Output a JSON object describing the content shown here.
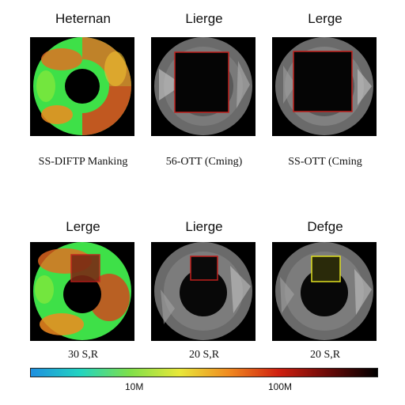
{
  "panels": [
    {
      "title": "Heternan",
      "caption": "SS-DIFTP Manking"
    },
    {
      "title": "Lierge",
      "caption": "56-OTT (Cming)"
    },
    {
      "title": "Lerge",
      "caption": "SS-OTT (Cming"
    },
    {
      "title": "Lerge",
      "caption": "30 S,R"
    },
    {
      "title": "Lierge",
      "caption": "20 S,R"
    },
    {
      "title": "Defge",
      "caption": "20 S,R"
    }
  ],
  "colorbar": {
    "ticks": [
      "10M",
      "100M"
    ],
    "colors": [
      "#1e8fe0",
      "#22d4c0",
      "#7fe04a",
      "#e8e83a",
      "#f08a20",
      "#d02010",
      "#6a0a08",
      "#000000"
    ]
  },
  "box_colors": {
    "red": "#c0201c",
    "yellow": "#e0e020"
  }
}
